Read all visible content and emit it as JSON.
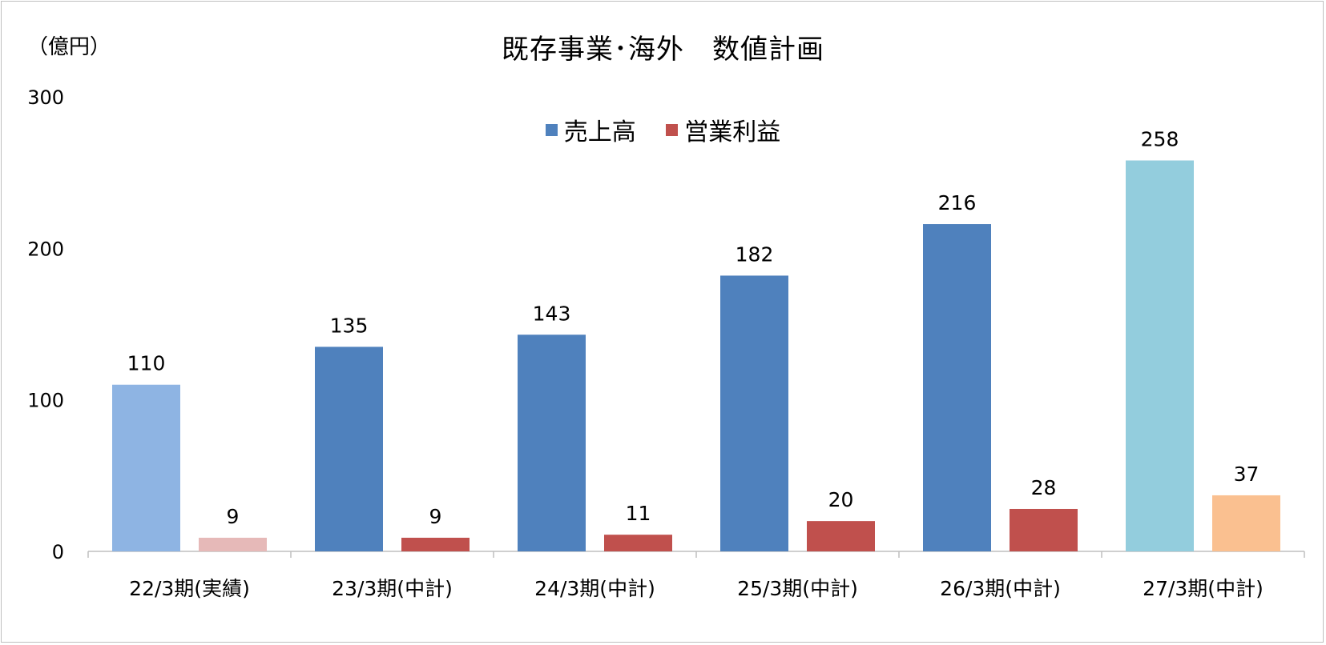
{
  "chart_data": {
    "type": "bar",
    "title": "既存事業･海外　数値計画",
    "unit_label": "（億円）",
    "categories": [
      "22/3期(実績)",
      "23/3期(中計)",
      "24/3期(中計)",
      "25/3期(中計)",
      "26/3期(中計)",
      "27/3期(中計)"
    ],
    "series": [
      {
        "name": "売上高",
        "values": [
          110,
          135,
          143,
          182,
          216,
          258
        ],
        "color": "#4f81bd",
        "point_colors": [
          "#8eb4e3",
          "#4f81bd",
          "#4f81bd",
          "#4f81bd",
          "#4f81bd",
          "#93cddd"
        ]
      },
      {
        "name": "営業利益",
        "values": [
          9,
          9,
          11,
          20,
          28,
          37
        ],
        "color": "#c0504d",
        "point_colors": [
          "#e6b9b8",
          "#c0504d",
          "#c0504d",
          "#c0504d",
          "#c0504d",
          "#fac090"
        ]
      }
    ],
    "yticks": [
      "0",
      "100",
      "200",
      "300"
    ],
    "ylim": [
      0,
      300
    ],
    "grid": false,
    "legend_position": "top-center"
  }
}
